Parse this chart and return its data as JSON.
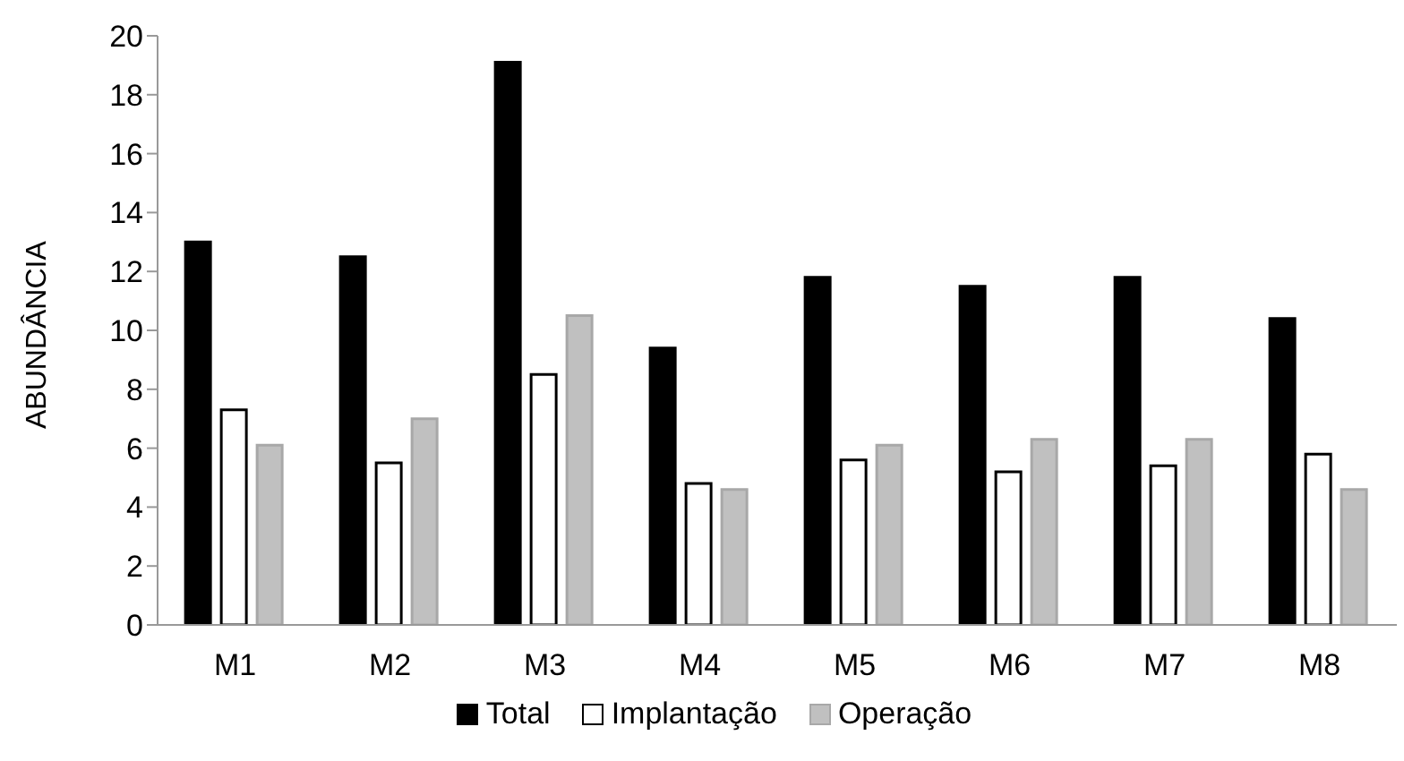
{
  "chart_data": {
    "type": "bar",
    "ylabel": "ABUNDÂNCIA",
    "categories": [
      "M1",
      "M2",
      "M3",
      "M4",
      "M5",
      "M6",
      "M7",
      "M8"
    ],
    "series": [
      {
        "name": "Total",
        "color": "#000000",
        "values": [
          13,
          12.5,
          19.1,
          9.4,
          11.8,
          11.5,
          11.8,
          10.4
        ]
      },
      {
        "name": "Implantação",
        "color": "#ffffff",
        "values": [
          7.3,
          5.5,
          8.5,
          4.8,
          5.6,
          5.2,
          5.4,
          5.8
        ]
      },
      {
        "name": "Operação",
        "color": "#c0c0c0",
        "values": [
          6.1,
          7.0,
          10.5,
          4.6,
          6.1,
          6.3,
          6.3,
          4.6
        ]
      }
    ],
    "ylim": [
      0,
      20
    ],
    "yticks": [
      0,
      2,
      4,
      6,
      8,
      10,
      12,
      14,
      16,
      18,
      20
    ],
    "grid": false,
    "legend": "bottom"
  }
}
